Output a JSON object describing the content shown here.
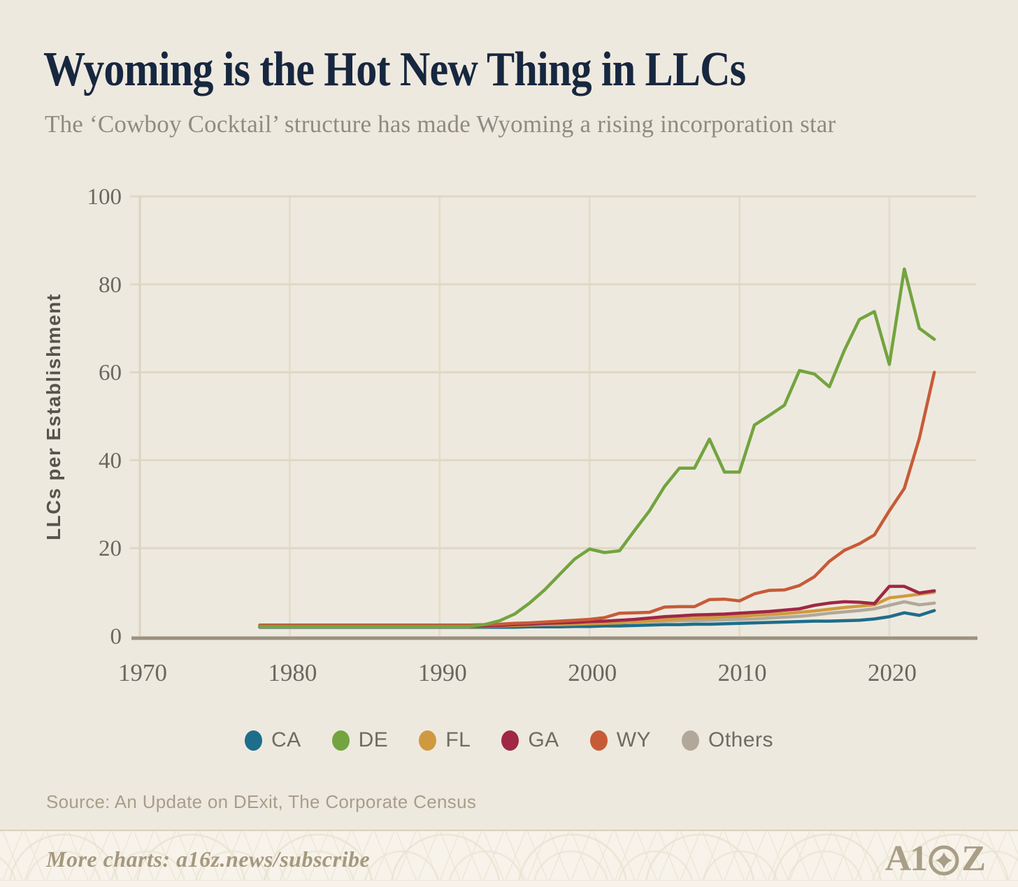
{
  "header": {
    "title": "Wyoming is the Hot New Thing in LLCs",
    "subtitle": "The ‘Cowboy Cocktail’ structure has made Wyoming a rising incorporation star"
  },
  "chart_data": {
    "type": "line",
    "title": "Wyoming is the Hot New Thing in LLCs",
    "xlabel": "",
    "ylabel": "LLCs per Establishment",
    "xlim": [
      1970,
      2025.8
    ],
    "ylim": [
      0,
      100
    ],
    "xticks": [
      1970,
      1980,
      1990,
      2000,
      2010,
      2020
    ],
    "yticks": [
      0,
      20,
      40,
      60,
      80,
      100
    ],
    "grid": true,
    "legend_position": "bottom",
    "x": [
      1978,
      1979,
      1980,
      1981,
      1982,
      1983,
      1984,
      1985,
      1986,
      1987,
      1988,
      1989,
      1990,
      1991,
      1992,
      1993,
      1994,
      1995,
      1996,
      1997,
      1998,
      1999,
      2000,
      2001,
      2002,
      2003,
      2004,
      2005,
      2006,
      2007,
      2008,
      2009,
      2010,
      2011,
      2012,
      2013,
      2014,
      2015,
      2016,
      2017,
      2018,
      2019,
      2020,
      2021,
      2022,
      2023
    ],
    "series": [
      {
        "name": "CA",
        "color": "#1D6E8A",
        "values": [
          2.0,
          2.0,
          2.0,
          2.0,
          2.0,
          2.0,
          2.0,
          2.0,
          2.0,
          2.0,
          2.0,
          2.0,
          2.0,
          2.0,
          2.0,
          2.0,
          2.0,
          2.0,
          2.1,
          2.1,
          2.1,
          2.2,
          2.2,
          2.3,
          2.3,
          2.4,
          2.5,
          2.6,
          2.6,
          2.7,
          2.7,
          2.8,
          2.9,
          3.0,
          3.1,
          3.2,
          3.3,
          3.4,
          3.4,
          3.5,
          3.6,
          3.9,
          4.4,
          5.3,
          4.7,
          5.8
        ]
      },
      {
        "name": "DE",
        "color": "#73A43F",
        "values": [
          2.2,
          2.2,
          2.2,
          2.2,
          2.2,
          2.2,
          2.2,
          2.2,
          2.2,
          2.2,
          2.2,
          2.2,
          2.2,
          2.2,
          2.2,
          2.6,
          3.5,
          5.0,
          7.5,
          10.5,
          14.0,
          17.5,
          19.8,
          19.0,
          19.4,
          24.0,
          28.5,
          34.0,
          38.2,
          38.2,
          44.8,
          37.3,
          37.3,
          48.0,
          50.2,
          52.5,
          60.4,
          59.6,
          56.7,
          65.0,
          72.0,
          73.8,
          61.8,
          83.5,
          70.0,
          67.5
        ]
      },
      {
        "name": "FL",
        "color": "#CF9A3F",
        "values": [
          2.1,
          2.1,
          2.1,
          2.1,
          2.1,
          2.1,
          2.1,
          2.1,
          2.1,
          2.1,
          2.1,
          2.1,
          2.1,
          2.1,
          2.1,
          2.2,
          2.3,
          2.4,
          2.5,
          2.6,
          2.6,
          2.7,
          2.8,
          2.9,
          3.0,
          3.2,
          3.4,
          3.7,
          3.9,
          4.1,
          4.2,
          4.4,
          4.5,
          4.7,
          4.9,
          5.1,
          5.4,
          5.7,
          6.1,
          6.5,
          6.8,
          7.1,
          8.7,
          9.1,
          9.5,
          10.0
        ]
      },
      {
        "name": "GA",
        "color": "#A02745",
        "values": [
          2.2,
          2.2,
          2.2,
          2.2,
          2.2,
          2.2,
          2.2,
          2.2,
          2.2,
          2.2,
          2.2,
          2.2,
          2.2,
          2.2,
          2.2,
          2.3,
          2.4,
          2.6,
          2.7,
          2.9,
          3.0,
          3.1,
          3.3,
          3.4,
          3.6,
          3.8,
          4.1,
          4.4,
          4.6,
          4.8,
          4.9,
          5.0,
          5.2,
          5.4,
          5.6,
          5.9,
          6.2,
          7.0,
          7.5,
          7.8,
          7.7,
          7.4,
          11.3,
          11.3,
          9.8,
          10.3
        ]
      },
      {
        "name": "WY",
        "color": "#C75B38",
        "values": [
          2.5,
          2.5,
          2.5,
          2.5,
          2.5,
          2.5,
          2.5,
          2.5,
          2.5,
          2.5,
          2.5,
          2.5,
          2.5,
          2.5,
          2.5,
          2.6,
          2.7,
          2.9,
          3.0,
          3.2,
          3.4,
          3.6,
          3.8,
          4.2,
          5.2,
          5.3,
          5.4,
          6.6,
          6.7,
          6.7,
          8.3,
          8.4,
          8.0,
          9.6,
          10.4,
          10.5,
          11.5,
          13.5,
          17.0,
          19.5,
          21.0,
          23.0,
          28.5,
          33.6,
          45.0,
          60.0
        ]
      },
      {
        "name": "Others",
        "color": "#B1A89A",
        "values": [
          2.0,
          2.0,
          2.0,
          2.0,
          2.0,
          2.0,
          2.0,
          2.0,
          2.0,
          2.0,
          2.0,
          2.0,
          2.0,
          2.0,
          2.0,
          2.0,
          2.1,
          2.2,
          2.4,
          2.5,
          2.6,
          2.7,
          2.9,
          3.0,
          3.1,
          3.2,
          3.3,
          3.4,
          3.5,
          3.5,
          3.6,
          3.7,
          3.8,
          3.9,
          4.1,
          4.3,
          4.5,
          4.8,
          5.2,
          5.5,
          5.8,
          6.2,
          7.0,
          7.8,
          7.1,
          7.5
        ]
      }
    ]
  },
  "source": {
    "text": "Source: An Update on DExit, The Corporate Census"
  },
  "footer": {
    "text": "More charts: a16z.news/subscribe",
    "logo_text": "A16Z"
  },
  "colors": {
    "background": "#EEE9DF",
    "title": "#17273F",
    "subtitle": "#8F8B83",
    "tick_label": "#6A6760",
    "grid_h": "#DFD8C4",
    "grid_v": "#E4DDCC",
    "axis_line": "#9A9180",
    "footer_background": "#F7F3EA",
    "footer_text": "#A4987E"
  }
}
